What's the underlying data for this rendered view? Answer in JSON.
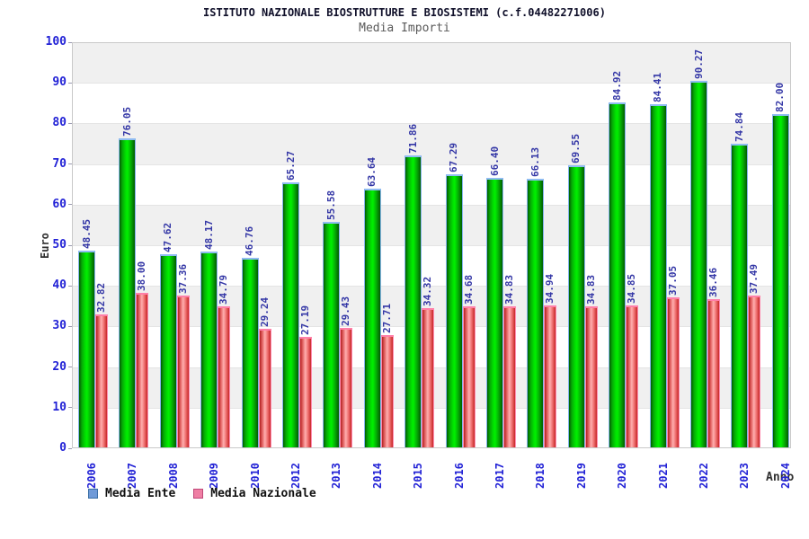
{
  "title": "ISTITUTO NAZIONALE BIOSTRUTTURE E BIOSISTEMI (c.f.04482271006)",
  "subtitle": "Media Importi",
  "colors": {
    "axis_text": "#2222d6",
    "value_label": "#3437a6",
    "band_gray": "#f0f0f0",
    "band_white": "#ffffff",
    "bar_green_mid": "#00e400",
    "bar_green_edge": "#015c01",
    "bar_red_mid": "#ffaeae",
    "bar_red_edge": "#b32020",
    "bar_green_cap": "#8fbcf2",
    "bar_red_cap": "#ff7fa8",
    "legend_ente": "#6f9ad8",
    "legend_nazionale": "#ef7fa4"
  },
  "legend": {
    "items": [
      {
        "label": "Media Ente",
        "swatch": "ente"
      },
      {
        "label": "Media Nazionale",
        "swatch": "naz"
      }
    ]
  },
  "chart_data": {
    "type": "bar",
    "title": "ISTITUTO NAZIONALE BIOSTRUTTURE E BIOSISTEMI (c.f.04482271006)",
    "subtitle": "Media Importi",
    "xlabel": "Anno",
    "ylabel": "Euro",
    "ylim": [
      0,
      100
    ],
    "ytick_step": 10,
    "yticks": [
      0,
      10,
      20,
      30,
      40,
      50,
      60,
      70,
      80,
      90,
      100
    ],
    "grid": "alternating-bands",
    "legend_position": "bottom-left",
    "categories": [
      "2006",
      "2007",
      "2008",
      "2009",
      "2010",
      "2012",
      "2013",
      "2014",
      "2015",
      "2016",
      "2017",
      "2018",
      "2019",
      "2020",
      "2021",
      "2022",
      "2023",
      "2024"
    ],
    "series": [
      {
        "name": "Media Ente",
        "bar_style": "green",
        "values": [
          48.45,
          76.05,
          47.62,
          48.17,
          46.76,
          65.27,
          55.58,
          63.64,
          71.86,
          67.29,
          66.4,
          66.13,
          69.55,
          84.92,
          84.41,
          90.27,
          74.84,
          82.0
        ]
      },
      {
        "name": "Media Nazionale",
        "bar_style": "red",
        "values": [
          32.82,
          38.0,
          37.36,
          34.79,
          29.24,
          27.19,
          29.43,
          27.71,
          34.32,
          34.68,
          34.83,
          34.94,
          34.83,
          34.85,
          37.05,
          36.46,
          37.49,
          null
        ]
      }
    ]
  }
}
